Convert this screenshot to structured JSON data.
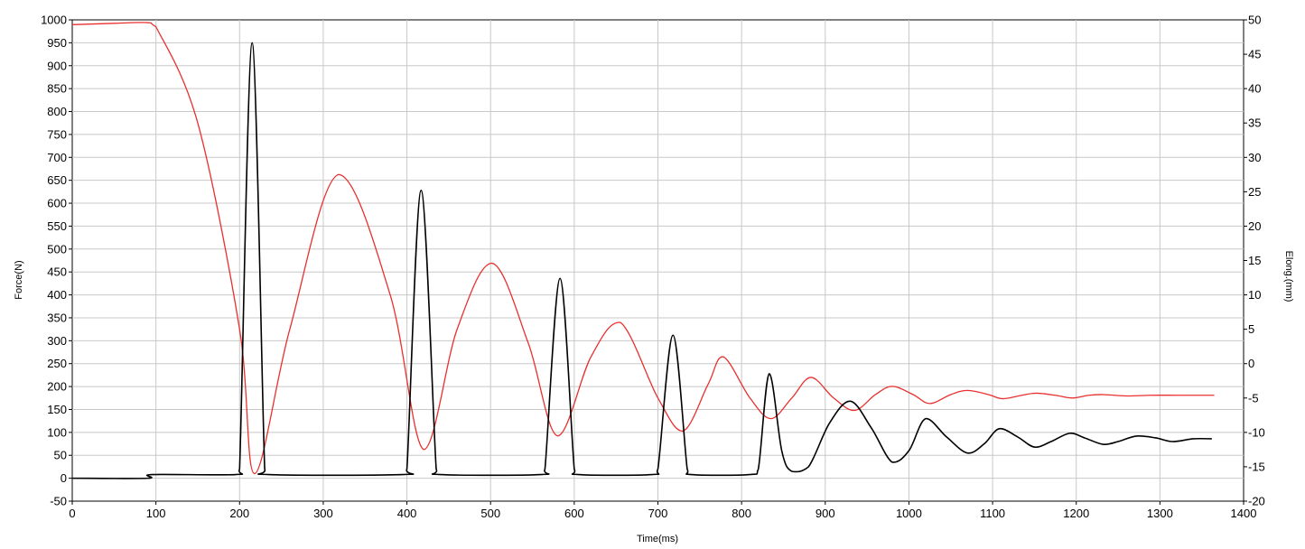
{
  "chart_data": {
    "type": "line",
    "title": "",
    "xlabel": "Time(ms)",
    "ylabel": "Force(N)",
    "y2label": "Elong.(mm)",
    "xlim": [
      0,
      1400
    ],
    "ylim": [
      -50,
      1000
    ],
    "y2lim": [
      -20,
      50
    ],
    "x_ticks": [
      0,
      100,
      200,
      300,
      400,
      500,
      600,
      700,
      800,
      900,
      1000,
      1100,
      1200,
      1300,
      1400
    ],
    "y_ticks": [
      -50,
      0,
      50,
      100,
      150,
      200,
      250,
      300,
      350,
      400,
      450,
      500,
      550,
      600,
      650,
      700,
      750,
      800,
      850,
      900,
      950,
      1000
    ],
    "y2_ticks": [
      -20,
      -15,
      -10,
      -5,
      0,
      5,
      10,
      15,
      20,
      25,
      30,
      35,
      40,
      45,
      50
    ],
    "grid": true,
    "series": [
      {
        "axis": "left",
        "color": "#000000",
        "x": [
          0,
          90,
          95,
          195,
          200,
          215,
          230,
          235,
          395,
          400,
          417,
          435,
          440,
          560,
          565,
          583,
          600,
          605,
          693,
          700,
          718,
          735,
          740,
          810,
          820,
          833,
          848,
          860,
          880,
          905,
          930,
          955,
          980,
          1000,
          1020,
          1045,
          1070,
          1090,
          1108,
          1130,
          1150,
          1170,
          1192,
          1210,
          1232,
          1250,
          1272,
          1295,
          1315,
          1340,
          1362
        ],
        "y": [
          0,
          0,
          8,
          8,
          20,
          950,
          20,
          8,
          8,
          20,
          628,
          20,
          8,
          8,
          20,
          436,
          20,
          8,
          8,
          20,
          312,
          20,
          8,
          8,
          20,
          228,
          60,
          15,
          25,
          120,
          168,
          110,
          35,
          60,
          130,
          90,
          55,
          75,
          108,
          90,
          68,
          80,
          98,
          88,
          74,
          80,
          92,
          88,
          80,
          86,
          86
        ]
      },
      {
        "axis": "right",
        "color": "#e8302e",
        "x": [
          0,
          50,
          90,
          100,
          150,
          200,
          218,
          260,
          318,
          380,
          420,
          460,
          502,
          545,
          580,
          620,
          655,
          700,
          730,
          760,
          778,
          810,
          835,
          860,
          883,
          910,
          935,
          960,
          980,
          1005,
          1025,
          1050,
          1070,
          1095,
          1112,
          1135,
          1152,
          1175,
          1195,
          1215,
          1232,
          1260,
          1290,
          1320,
          1365
        ],
        "y": [
          49.3,
          49.5,
          49.6,
          49,
          35,
          5,
          -16,
          5,
          27.5,
          10,
          -12.5,
          5,
          14.6,
          3,
          -10.5,
          1,
          6,
          -5,
          -9.8,
          -3,
          1,
          -5,
          -8,
          -5,
          -2,
          -5,
          -6.8,
          -4.5,
          -3.3,
          -4.5,
          -5.8,
          -4.5,
          -3.9,
          -4.5,
          -5.1,
          -4.6,
          -4.3,
          -4.6,
          -5,
          -4.6,
          -4.5,
          -4.7,
          -4.6,
          -4.6,
          -4.6
        ]
      }
    ]
  }
}
